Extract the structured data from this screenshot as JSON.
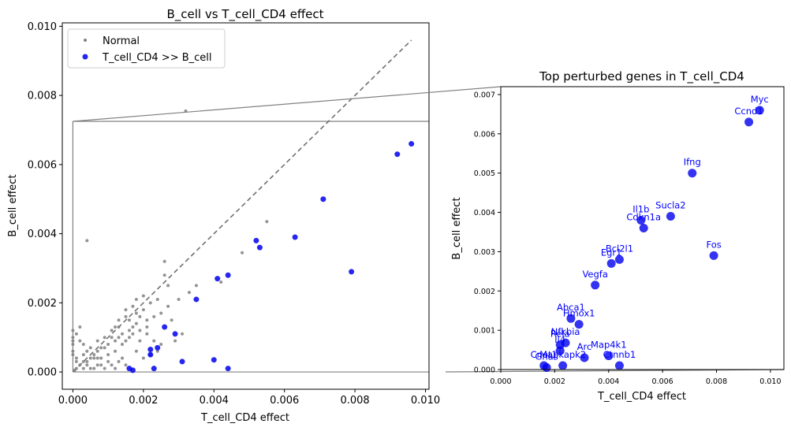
{
  "colors": {
    "normal": "#808080",
    "highlight": "#0000ee",
    "diagonal": "#707070",
    "annotation": "#0000ff"
  },
  "chart_data": [
    {
      "type": "scatter",
      "title": "B_cell vs T_cell_CD4 effect",
      "xlabel": "T_cell_CD4 effect",
      "ylabel": "B_cell effect",
      "xlim": [
        -0.0003,
        0.0101
      ],
      "ylim": [
        -0.0005,
        0.0101
      ],
      "xticks": [
        0.0,
        0.002,
        0.004,
        0.006,
        0.008,
        0.01
      ],
      "yticks": [
        0.0,
        0.002,
        0.004,
        0.006,
        0.008,
        0.01
      ],
      "xtick_labels": [
        "0.000",
        "0.002",
        "0.004",
        "0.006",
        "0.008",
        "0.010"
      ],
      "ytick_labels": [
        "0.000",
        "0.002",
        "0.004",
        "0.006",
        "0.008",
        "0.010"
      ],
      "grid": false,
      "legend": {
        "placement": "top-left",
        "entries": [
          "Normal",
          "T_cell_CD4 >> B_cell"
        ]
      },
      "diagonal": {
        "x": [
          0.0,
          0.0096
        ],
        "y": [
          0.0,
          0.0096
        ],
        "style": "dashed"
      },
      "zoom_box": {
        "x": [
          0.0,
          0.0101
        ],
        "y": [
          0.0,
          0.00725
        ]
      },
      "series": [
        {
          "name": "Normal",
          "points": [
            [
              0.0032,
              0.00755
            ],
            [
              0.0004,
              0.0038
            ],
            [
              0.0055,
              0.00435
            ],
            [
              0.0026,
              0.0032
            ],
            [
              0.0048,
              0.00345
            ],
            [
              0.0042,
              0.0026
            ],
            [
              0.0035,
              0.0025
            ],
            [
              0.0033,
              0.0023
            ],
            [
              0.003,
              0.0021
            ],
            [
              0.0027,
              0.0019
            ],
            [
              0.0026,
              0.0028
            ],
            [
              0.0027,
              0.0025
            ],
            [
              0.0022,
              0.002
            ],
            [
              0.002,
              0.0018
            ],
            [
              0.0025,
              0.0017
            ],
            [
              0.0021,
              0.0015
            ],
            [
              0.0019,
              0.0016
            ],
            [
              0.0018,
              0.0014
            ],
            [
              0.0017,
              0.0013
            ],
            [
              0.0016,
              0.0012
            ],
            [
              0.0014,
              0.0011
            ],
            [
              0.0013,
              0.001
            ],
            [
              0.0012,
              0.0009
            ],
            [
              0.0011,
              0.001
            ],
            [
              0.001,
              0.0008
            ],
            [
              0.0009,
              0.0007
            ],
            [
              0.0008,
              0.0007
            ],
            [
              0.0007,
              0.0006
            ],
            [
              0.0006,
              0.0005
            ],
            [
              0.0005,
              0.0004
            ],
            [
              0.0004,
              0.0003
            ],
            [
              0.0003,
              0.0003
            ],
            [
              0.0002,
              0.0002
            ],
            [
              0.0001,
              0.0001
            ],
            [
              5e-05,
              5e-05
            ],
            [
              0.0015,
              0.0018
            ],
            [
              0.0017,
              0.0019
            ],
            [
              0.0018,
              0.0017
            ],
            [
              0.0016,
              0.0015
            ],
            [
              0.0013,
              0.0013
            ],
            [
              0.0011,
              0.0012
            ],
            [
              0.0009,
              0.001
            ],
            [
              0.0007,
              0.0009
            ],
            [
              0.0005,
              0.0007
            ],
            [
              0.0003,
              0.0005
            ],
            [
              0.0001,
              0.0003
            ],
            [
              0.0,
              0.0012
            ],
            [
              0.0,
              0.001
            ],
            [
              0.0,
              0.0009
            ],
            [
              0.0,
              0.0008
            ],
            [
              0.0001,
              0.0011
            ],
            [
              0.0002,
              0.0013
            ],
            [
              0.0,
              0.0006
            ],
            [
              0.0,
              0.0005
            ],
            [
              0.0001,
              0.0004
            ],
            [
              0.0002,
              0.0009
            ],
            [
              0.0003,
              0.0008
            ],
            [
              0.0004,
              0.0006
            ],
            [
              0.0006,
              0.0004
            ],
            [
              0.0008,
              0.0004
            ],
            [
              0.001,
              0.0005
            ],
            [
              0.0012,
              0.0006
            ],
            [
              0.0014,
              0.0008
            ],
            [
              0.0015,
              0.0009
            ],
            [
              0.0016,
              0.001
            ],
            [
              0.0019,
              0.0012
            ],
            [
              0.0021,
              0.0011
            ],
            [
              0.0023,
              0.0009
            ],
            [
              0.0025,
              0.0008
            ],
            [
              0.0024,
              0.0006
            ],
            [
              0.0022,
              0.0005
            ],
            [
              0.002,
              0.0004
            ],
            [
              0.0018,
              0.0006
            ],
            [
              0.0013,
              0.0003
            ],
            [
              0.0011,
              0.0002
            ],
            [
              0.0009,
              0.0001
            ],
            [
              0.0007,
              0.0002
            ],
            [
              0.0005,
              0.0001
            ],
            [
              0.0003,
              0.0001
            ],
            [
              0.0015,
              0.0002
            ],
            [
              0.0014,
              0.0004
            ],
            [
              0.0012,
              0.0001
            ],
            [
              0.001,
              0.0003
            ],
            [
              0.0008,
              0.0002
            ],
            [
              0.0006,
              0.0001
            ],
            [
              0.0019,
              0.0009
            ],
            [
              0.0021,
              0.0013
            ],
            [
              0.0023,
              0.0016
            ],
            [
              0.0017,
              0.0011
            ],
            [
              0.0012,
              0.0013
            ],
            [
              0.0029,
              0.0009
            ],
            [
              0.0031,
              0.0011
            ],
            [
              0.0028,
              0.0015
            ],
            [
              0.0024,
              0.0021
            ],
            [
              0.002,
              0.0022
            ],
            [
              0.0018,
              0.0021
            ],
            [
              0.0015,
              0.0016
            ],
            [
              0.0013,
              0.0015
            ],
            [
              0.0007,
              0.0004
            ],
            [
              0.0004,
              0.0002
            ]
          ]
        },
        {
          "name": "T_cell_CD4 >> B_cell",
          "points": [
            [
              0.0096,
              0.0066
            ],
            [
              0.0092,
              0.0063
            ],
            [
              0.0071,
              0.005
            ],
            [
              0.0063,
              0.0039
            ],
            [
              0.0052,
              0.0038
            ],
            [
              0.0053,
              0.0036
            ],
            [
              0.0079,
              0.0029
            ],
            [
              0.0044,
              0.0028
            ],
            [
              0.0041,
              0.0027
            ],
            [
              0.0035,
              0.0021
            ],
            [
              0.0026,
              0.0013
            ],
            [
              0.0029,
              0.0011
            ],
            [
              0.0024,
              0.0007
            ],
            [
              0.0022,
              0.00065
            ],
            [
              0.0022,
              0.0005
            ],
            [
              0.004,
              0.00035
            ],
            [
              0.0031,
              0.0003
            ],
            [
              0.0044,
              0.0001
            ],
            [
              0.0023,
              0.0001
            ],
            [
              0.0017,
              5e-05
            ],
            [
              0.0016,
              0.0001
            ]
          ]
        }
      ]
    },
    {
      "type": "scatter",
      "title": "Top perturbed genes in T_cell_CD4",
      "xlabel": "T_cell_CD4 effect",
      "ylabel": "B_cell effect",
      "xlim": [
        0.0,
        0.0105
      ],
      "ylim": [
        0.0,
        0.0072
      ],
      "xticks": [
        0.0,
        0.002,
        0.004,
        0.006,
        0.008,
        0.01
      ],
      "yticks": [
        0.0,
        0.001,
        0.002,
        0.003,
        0.004,
        0.005,
        0.006,
        0.007
      ],
      "xtick_labels": [
        "0.000",
        "0.002",
        "0.004",
        "0.006",
        "0.008",
        "0.010"
      ],
      "ytick_labels": [
        "0.000",
        "0.001",
        "0.002",
        "0.003",
        "0.004",
        "0.005",
        "0.006",
        "0.007"
      ],
      "grid": false,
      "series": [
        {
          "name": "T_cell_CD4 >> B_cell",
          "points": [
            {
              "gene": "Myc",
              "x": 0.0096,
              "y": 0.0066
            },
            {
              "gene": "Ccnd1",
              "x": 0.0092,
              "y": 0.0063
            },
            {
              "gene": "Ifng",
              "x": 0.0071,
              "y": 0.005
            },
            {
              "gene": "Sucla2",
              "x": 0.0063,
              "y": 0.0039
            },
            {
              "gene": "Il1b",
              "x": 0.0052,
              "y": 0.0038
            },
            {
              "gene": "Cdkn1a",
              "x": 0.0053,
              "y": 0.0036
            },
            {
              "gene": "Fos",
              "x": 0.0079,
              "y": 0.0029
            },
            {
              "gene": "Bcl2l1",
              "x": 0.0044,
              "y": 0.0028
            },
            {
              "gene": "Egr1",
              "x": 0.0041,
              "y": 0.0027
            },
            {
              "gene": "Vegfa",
              "x": 0.0035,
              "y": 0.00215
            },
            {
              "gene": "Abca1",
              "x": 0.0026,
              "y": 0.0013
            },
            {
              "gene": "Hmox1",
              "x": 0.0029,
              "y": 0.00115
            },
            {
              "gene": "Nfkbia",
              "x": 0.0024,
              "y": 0.00068
            },
            {
              "gene": "Rela",
              "x": 0.0022,
              "y": 0.00063
            },
            {
              "gene": "Il4",
              "x": 0.0022,
              "y": 0.00048
            },
            {
              "gene": "Map4k1",
              "x": 0.004,
              "y": 0.00035
            },
            {
              "gene": "Ctnnb1",
              "x": 0.0044,
              "y": 0.0001
            },
            {
              "gene": "Arc",
              "x": 0.0031,
              "y": 0.0003
            },
            {
              "gene": "Mapkapk2",
              "x": 0.0023,
              "y": 0.0001
            },
            {
              "gene": "Gnas",
              "x": 0.0017,
              "y": 5e-05
            },
            {
              "gene": "Cnot1",
              "x": 0.0016,
              "y": 0.0001
            }
          ]
        }
      ]
    }
  ]
}
